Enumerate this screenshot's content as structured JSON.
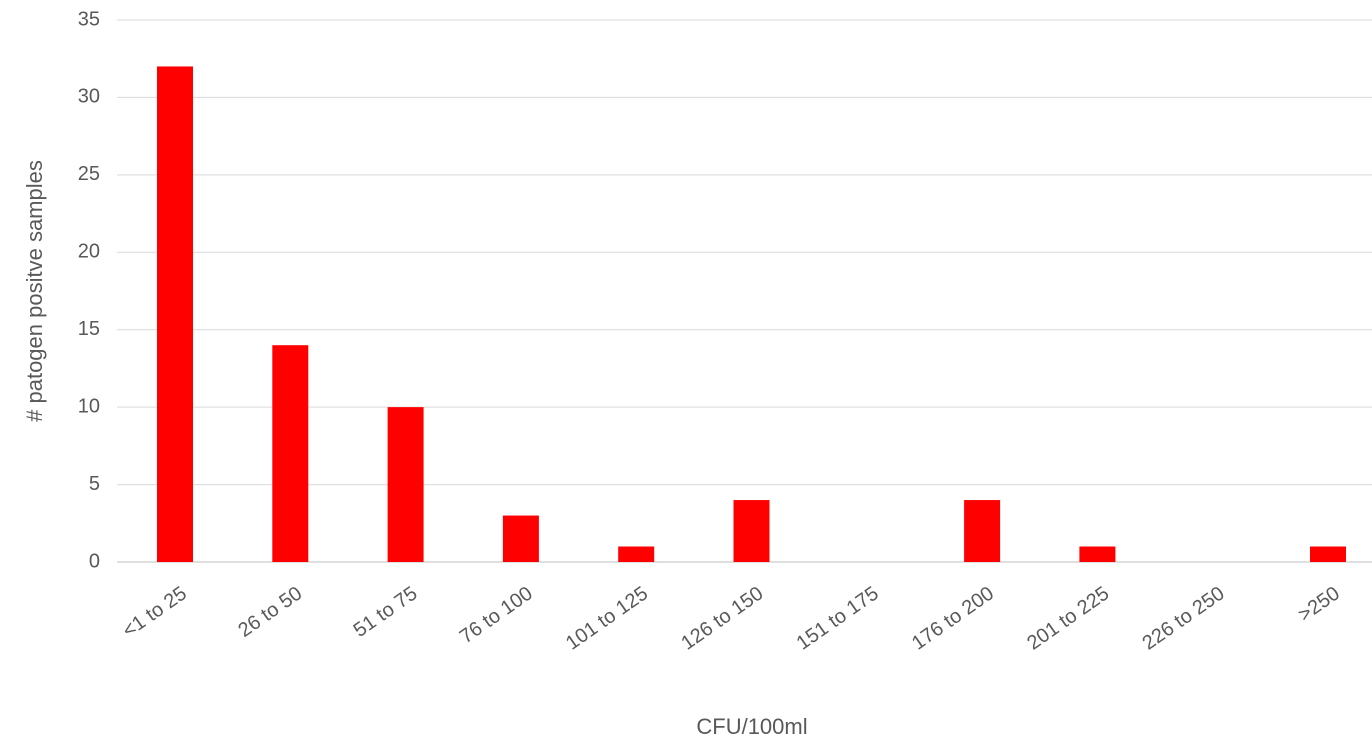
{
  "chart_data": {
    "type": "bar",
    "categories": [
      "<1 to 25",
      "26 to 50",
      "51 to 75",
      "76 to 100",
      "101 to 125",
      "126 to 150",
      "151 to 175",
      "176 to 200",
      "201 to 225",
      "226 to 250",
      ">250"
    ],
    "values": [
      32,
      14,
      10,
      3,
      1,
      4,
      0,
      4,
      1,
      0,
      1
    ],
    "color": "#ff0000",
    "ylim": [
      0,
      35
    ],
    "yticks": [
      0,
      5,
      10,
      15,
      20,
      25,
      30,
      35
    ],
    "grid": true,
    "x_label": "CFU/100ml",
    "y_label": "# patogen positve samples"
  }
}
